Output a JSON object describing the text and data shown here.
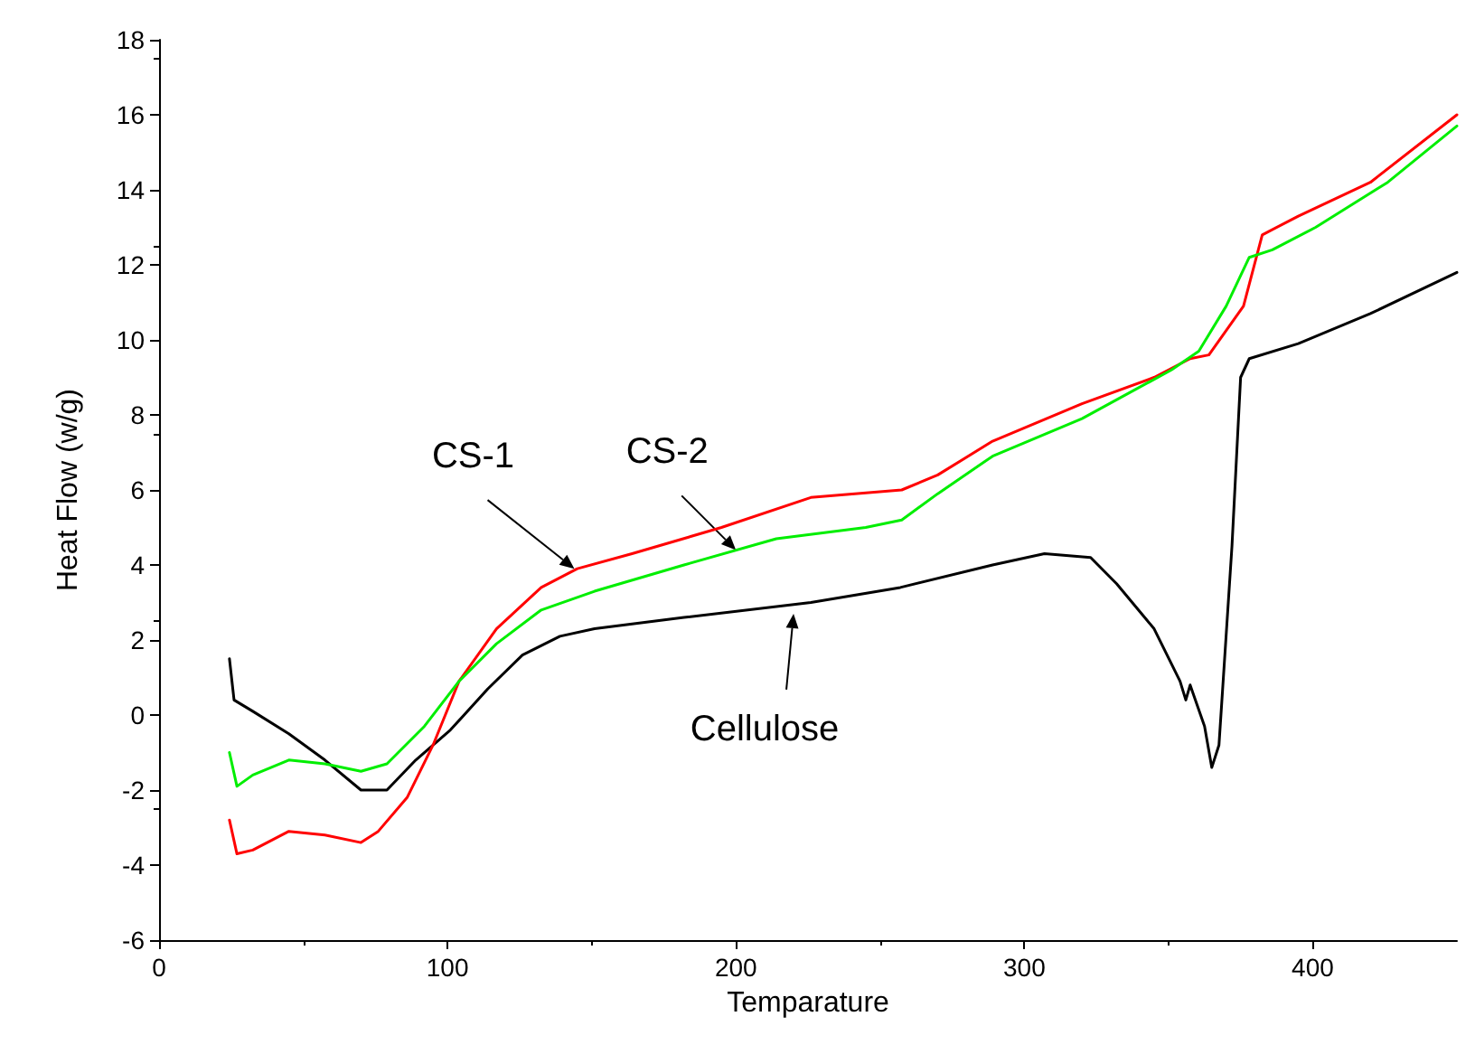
{
  "chart_data": {
    "type": "line",
    "xlabel": "Temparature",
    "ylabel": "Heat Flow (w/g)",
    "xlim": [
      0,
      450
    ],
    "xticks": [
      0,
      100,
      200,
      300,
      400
    ],
    "ylim": [
      -6,
      18
    ],
    "yticks": [
      -6,
      -4,
      -2,
      0,
      2,
      4,
      6,
      8,
      10,
      12,
      14,
      16,
      18
    ],
    "grid": false,
    "marker": "none",
    "line_style": "solid",
    "series": [
      {
        "color": "#000000",
        "x": [
          24.4,
          26,
          32.5,
          45,
          57.5,
          70,
          79,
          89,
          101,
          114,
          126,
          139,
          151,
          182,
          226,
          257,
          289,
          307,
          323,
          332,
          345,
          354,
          356,
          357.5,
          362.5,
          365,
          367.5,
          372,
          375,
          378,
          395,
          420,
          450
        ],
        "values": [
          1.5,
          0.4,
          0.1,
          -0.5,
          -1.2,
          -2.0,
          -2.0,
          -1.2,
          -0.4,
          0.7,
          1.6,
          2.1,
          2.3,
          2.6,
          3.0,
          3.4,
          4.0,
          4.3,
          4.2,
          3.5,
          2.3,
          0.9,
          0.4,
          0.8,
          -0.3,
          -1.4,
          -0.8,
          4.5,
          9.0,
          9.5,
          9.9,
          10.7,
          11.8
        ]
      },
      {
        "color": "#ff0000",
        "x": [
          24.4,
          27,
          32.5,
          45,
          57.5,
          70,
          76,
          86,
          95,
          104,
          117,
          132.5,
          145,
          164,
          195,
          226,
          257.5,
          270,
          289,
          320,
          345,
          357.5,
          364,
          376,
          382.5,
          395,
          420,
          450
        ],
        "values": [
          -2.8,
          -3.7,
          -3.6,
          -3.1,
          -3.2,
          -3.4,
          -3.1,
          -2.2,
          -0.8,
          0.9,
          2.3,
          3.4,
          3.9,
          4.3,
          5.0,
          5.8,
          6.0,
          6.4,
          7.3,
          8.3,
          9.0,
          9.5,
          9.6,
          10.9,
          12.8,
          13.3,
          14.2,
          16.0
        ]
      },
      {
        "color": "#00ee00",
        "x": [
          24.4,
          27,
          32.5,
          45,
          57.5,
          70,
          79,
          92,
          104,
          117,
          132.5,
          151,
          182,
          214,
          245,
          257.5,
          270,
          289,
          320,
          351,
          360.5,
          370,
          378,
          386,
          401,
          426,
          450
        ],
        "values": [
          -1.0,
          -1.9,
          -1.6,
          -1.2,
          -1.3,
          -1.5,
          -1.3,
          -0.3,
          0.9,
          1.9,
          2.8,
          3.3,
          4.0,
          4.7,
          5.0,
          5.2,
          5.9,
          6.9,
          7.9,
          9.2,
          9.7,
          10.9,
          12.2,
          12.4,
          13.0,
          14.2,
          15.7
        ]
      }
    ],
    "annotations": [
      {
        "text": "CS-1",
        "x": 144,
        "y": 3.9
      },
      {
        "text": "CS-2",
        "x": 200,
        "y": 4.4
      },
      {
        "text": "Cellulose",
        "x": 220,
        "y": 2.7
      }
    ]
  }
}
